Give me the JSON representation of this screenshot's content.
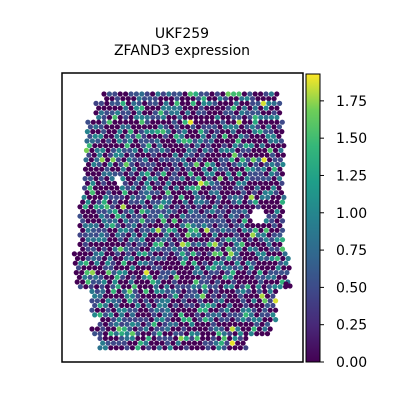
{
  "chart_data": {
    "type": "scatter",
    "subtype": "spatial-hex-expression-map",
    "title": "UKF259",
    "subtitle": "ZFAND3 expression",
    "xlabel": "",
    "ylabel": "",
    "axis_ticks_visible": false,
    "grid": false,
    "colormap": "viridis",
    "color_range": [
      0.0,
      1.93
    ],
    "colorbar": {
      "ticks": [
        0.0,
        0.25,
        0.5,
        0.75,
        1.0,
        1.25,
        1.5,
        1.75
      ],
      "tick_labels": [
        "0.00",
        "0.25",
        "0.50",
        "0.75",
        "1.00",
        "1.25",
        "1.50",
        "1.75"
      ],
      "placement": "right"
    },
    "value_distribution": {
      "dominant_value": 0.0,
      "common_values": [
        0.0,
        0.5,
        0.75,
        1.0
      ],
      "sparse_high_values": [
        1.25,
        1.5,
        1.75
      ]
    },
    "colors": {
      "low": "#440154",
      "mid": "#21918c",
      "high": "#fde725"
    }
  }
}
